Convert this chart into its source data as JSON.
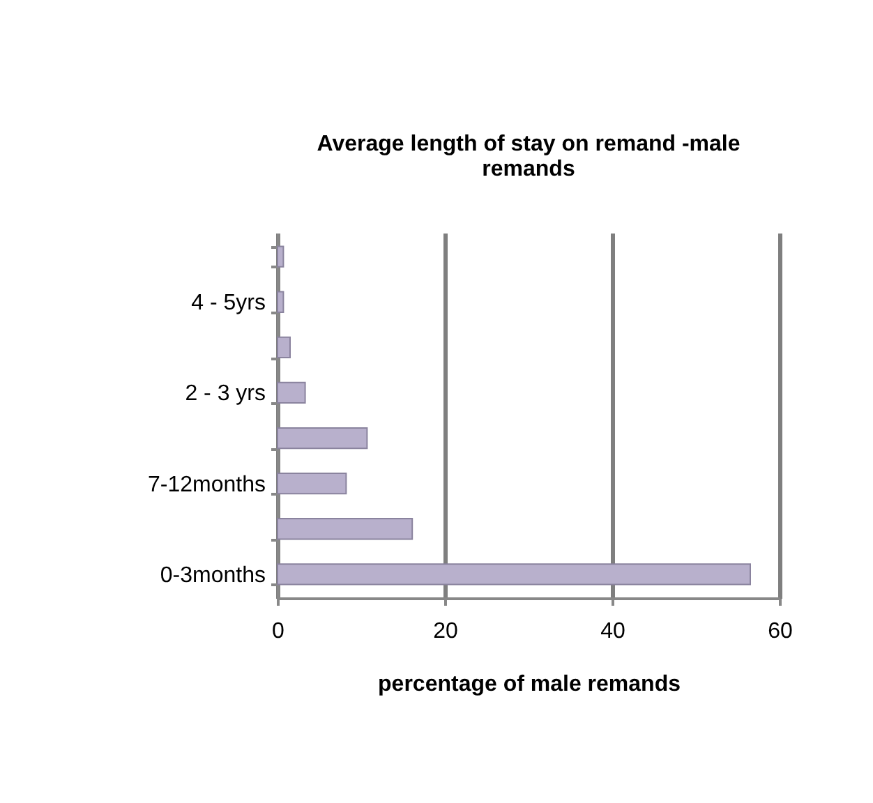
{
  "chart_data": {
    "type": "bar",
    "orientation": "horizontal",
    "title": "Average length of stay on remand -male remands",
    "xlabel": "percentage of male remands",
    "categories": [
      null,
      "4 - 5yrs",
      null,
      "2 - 3 yrs",
      null,
      "7-12months",
      null,
      "0-3months"
    ],
    "values": [
      0.7,
      0.7,
      1.5,
      3.3,
      10.7,
      8.2,
      16.1,
      56.5
    ],
    "color": "#b8b0cc",
    "xlim": [
      0,
      60
    ],
    "xticks": [
      0,
      20,
      40,
      60
    ],
    "grid": "x"
  }
}
